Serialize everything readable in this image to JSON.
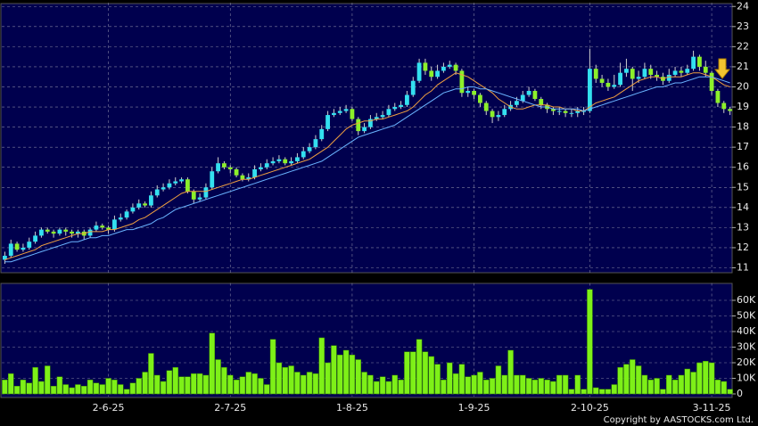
{
  "chart_data": [
    {
      "type": "candlestick",
      "categories": [
        null,
        null,
        null,
        null,
        null,
        null,
        null,
        null,
        null,
        null,
        null,
        null,
        null,
        null,
        null,
        null,
        null,
        "2-6-25",
        null,
        null,
        null,
        null,
        null,
        null,
        null,
        null,
        null,
        null,
        null,
        null,
        null,
        null,
        null,
        null,
        null,
        null,
        null,
        "2-7-25",
        null,
        null,
        null,
        null,
        null,
        null,
        null,
        null,
        null,
        null,
        null,
        null,
        null,
        null,
        null,
        null,
        null,
        null,
        null,
        "1-8-25",
        null,
        null,
        null,
        null,
        null,
        null,
        null,
        null,
        null,
        null,
        null,
        null,
        null,
        null,
        null,
        null,
        null,
        null,
        null,
        "1-9-25",
        null,
        null,
        null,
        null,
        null,
        null,
        null,
        null,
        null,
        null,
        null,
        null,
        null,
        null,
        null,
        null,
        null,
        null,
        "2-10-25",
        null,
        null,
        null,
        null,
        null,
        null,
        null,
        null,
        null,
        null,
        null,
        null,
        null,
        null,
        null,
        null,
        null,
        null,
        null,
        "3-11-25",
        null,
        null,
        null
      ],
      "open": [
        11.4,
        11.6,
        12.2,
        11.9,
        12.0,
        12.3,
        12.6,
        12.9,
        12.8,
        12.7,
        12.9,
        12.8,
        12.7,
        12.8,
        12.6,
        12.9,
        13.1,
        13.0,
        12.9,
        13.4,
        13.5,
        13.8,
        14.0,
        14.2,
        14.1,
        14.6,
        14.9,
        15.0,
        15.2,
        15.3,
        15.4,
        14.8,
        14.4,
        14.5,
        15.0,
        15.8,
        16.2,
        16.0,
        15.9,
        15.6,
        15.4,
        15.5,
        15.9,
        16.0,
        16.2,
        16.3,
        16.4,
        16.2,
        16.3,
        16.5,
        16.8,
        17.0,
        17.4,
        17.9,
        18.6,
        18.7,
        18.8,
        18.9,
        18.4,
        17.8,
        18.0,
        18.4,
        18.5,
        18.6,
        18.9,
        19.0,
        19.1,
        19.6,
        20.3,
        21.2,
        20.8,
        20.5,
        20.8,
        21.0,
        21.1,
        20.8,
        19.7,
        19.8,
        19.6,
        19.2,
        18.8,
        18.5,
        18.6,
        18.9,
        19.1,
        19.3,
        19.6,
        19.8,
        19.4,
        19.1,
        18.9,
        18.8,
        18.8,
        18.7,
        18.7,
        18.8,
        18.8,
        20.9,
        20.4,
        20.2,
        20.0,
        20.1,
        20.7,
        20.9,
        20.4,
        20.5,
        20.9,
        20.6,
        20.5,
        20.3,
        20.6,
        20.8,
        20.7,
        20.9,
        21.5,
        21.0,
        20.7,
        19.8,
        19.2,
        18.9
      ],
      "high": [
        11.8,
        12.4,
        12.3,
        12.2,
        12.5,
        12.8,
        13.0,
        13.0,
        12.9,
        13.0,
        13.0,
        12.9,
        12.9,
        12.9,
        13.0,
        13.3,
        13.2,
        13.1,
        13.6,
        13.7,
        13.9,
        14.2,
        14.4,
        14.3,
        14.8,
        15.1,
        15.2,
        15.4,
        15.5,
        15.5,
        15.5,
        14.9,
        14.7,
        15.2,
        16.0,
        16.5,
        16.3,
        16.1,
        16.0,
        15.7,
        15.7,
        16.1,
        16.2,
        16.4,
        16.5,
        16.6,
        16.5,
        16.5,
        16.7,
        17.0,
        17.2,
        17.6,
        18.1,
        18.8,
        18.9,
        19.0,
        19.1,
        19.0,
        18.5,
        18.2,
        18.6,
        18.7,
        18.8,
        19.1,
        19.2,
        19.3,
        19.8,
        20.5,
        21.4,
        21.4,
        21.0,
        21.1,
        21.2,
        21.3,
        21.2,
        20.9,
        20.0,
        19.9,
        19.7,
        19.3,
        18.9,
        18.8,
        19.1,
        19.3,
        19.5,
        19.8,
        20.0,
        19.9,
        19.5,
        19.2,
        19.0,
        19.0,
        18.9,
        18.9,
        19.0,
        19.0,
        21.9,
        21.1,
        20.6,
        20.4,
        20.6,
        21.2,
        21.4,
        21.0,
        20.8,
        21.2,
        21.1,
        20.8,
        20.7,
        20.9,
        21.0,
        21.0,
        21.1,
        21.8,
        21.6,
        21.3,
        20.8,
        19.9,
        19.3,
        19.0
      ],
      "low": [
        11.2,
        11.5,
        11.8,
        11.8,
        11.9,
        12.2,
        12.5,
        12.7,
        12.5,
        12.6,
        12.6,
        12.5,
        12.5,
        12.4,
        12.5,
        12.8,
        12.9,
        12.7,
        12.8,
        13.3,
        13.4,
        13.7,
        13.9,
        14.0,
        14.0,
        14.5,
        14.8,
        14.9,
        15.1,
        15.2,
        14.7,
        14.2,
        14.3,
        14.4,
        14.9,
        15.7,
        15.9,
        15.7,
        15.5,
        15.3,
        15.3,
        15.4,
        15.8,
        15.9,
        16.1,
        16.2,
        16.1,
        16.1,
        16.2,
        16.4,
        16.7,
        16.9,
        17.3,
        17.8,
        18.5,
        18.6,
        18.7,
        18.3,
        17.6,
        17.7,
        17.9,
        18.3,
        18.4,
        18.5,
        18.8,
        18.9,
        19.0,
        19.5,
        20.2,
        20.6,
        20.3,
        20.4,
        20.7,
        20.9,
        20.6,
        19.5,
        19.5,
        19.4,
        19.0,
        18.6,
        18.2,
        18.3,
        18.5,
        18.8,
        19.0,
        19.2,
        19.5,
        19.3,
        18.9,
        18.7,
        18.6,
        18.6,
        18.5,
        18.5,
        18.5,
        18.6,
        18.7,
        20.2,
        20.0,
        19.8,
        19.9,
        20.0,
        20.5,
        19.8,
        20.2,
        20.4,
        20.4,
        20.3,
        20.1,
        20.2,
        20.5,
        20.5,
        20.6,
        20.8,
        20.8,
        20.5,
        19.6,
        19.0,
        18.7,
        18.6
      ],
      "close": [
        11.6,
        12.2,
        11.9,
        12.0,
        12.3,
        12.6,
        12.9,
        12.8,
        12.7,
        12.9,
        12.8,
        12.7,
        12.8,
        12.6,
        12.9,
        13.1,
        13.0,
        12.9,
        13.4,
        13.5,
        13.8,
        14.0,
        14.2,
        14.1,
        14.6,
        14.9,
        15.0,
        15.2,
        15.3,
        15.4,
        14.8,
        14.4,
        14.5,
        15.0,
        15.8,
        16.2,
        16.0,
        15.9,
        15.6,
        15.4,
        15.5,
        15.9,
        16.0,
        16.2,
        16.3,
        16.4,
        16.2,
        16.3,
        16.5,
        16.8,
        17.0,
        17.4,
        17.9,
        18.6,
        18.7,
        18.8,
        18.9,
        18.4,
        17.8,
        18.0,
        18.4,
        18.5,
        18.6,
        18.9,
        19.0,
        19.1,
        19.6,
        20.3,
        21.2,
        20.8,
        20.5,
        20.8,
        21.0,
        21.1,
        20.8,
        19.7,
        19.8,
        19.6,
        19.2,
        18.8,
        18.5,
        18.6,
        18.9,
        19.1,
        19.3,
        19.6,
        19.8,
        19.4,
        19.1,
        18.9,
        18.8,
        18.8,
        18.7,
        18.7,
        18.8,
        18.8,
        20.9,
        20.4,
        20.2,
        20.0,
        20.1,
        20.7,
        20.9,
        20.4,
        20.5,
        20.9,
        20.6,
        20.5,
        20.3,
        20.6,
        20.8,
        20.7,
        20.9,
        21.5,
        21.0,
        20.7,
        19.8,
        19.2,
        18.9,
        18.8
      ],
      "up_color": "#33e0f0",
      "down_color": "#8cf02a",
      "wick_color": "#d0d0d0",
      "series": [
        {
          "color": "#f0a040",
          "values": [
            11.4,
            11.5,
            11.6,
            11.7,
            11.8,
            11.9,
            12.1,
            12.2,
            12.3,
            12.4,
            12.5,
            12.6,
            12.7,
            12.7,
            12.8,
            12.8,
            12.8,
            12.9,
            12.9,
            13.0,
            13.1,
            13.2,
            13.4,
            13.5,
            13.7,
            13.9,
            14.1,
            14.3,
            14.5,
            14.7,
            14.8,
            14.8,
            14.8,
            14.8,
            14.9,
            15.0,
            15.1,
            15.2,
            15.3,
            15.4,
            15.4,
            15.5,
            15.6,
            15.7,
            15.8,
            15.9,
            16.0,
            16.1,
            16.2,
            16.3,
            16.4,
            16.6,
            16.8,
            17.0,
            17.3,
            17.6,
            17.9,
            18.1,
            18.2,
            18.3,
            18.3,
            18.4,
            18.4,
            18.5,
            18.6,
            18.7,
            18.8,
            19.0,
            19.3,
            19.6,
            19.8,
            20.1,
            20.3,
            20.5,
            20.7,
            20.6,
            20.5,
            20.3,
            20.1,
            19.9,
            19.7,
            19.4,
            19.2,
            19.0,
            18.9,
            18.9,
            19.0,
            19.1,
            19.1,
            19.1,
            19.0,
            19.0,
            18.9,
            18.9,
            18.8,
            18.8,
            19.0,
            19.2,
            19.3,
            19.4,
            19.5,
            19.7,
            19.9,
            20.1,
            20.3,
            20.4,
            20.5,
            20.5,
            20.4,
            20.5,
            20.5,
            20.5,
            20.6,
            20.7,
            20.7,
            20.6,
            20.5,
            20.3,
            20.1,
            20.0
          ]
        },
        {
          "color": "#6ab4ff",
          "values": [
            11.3,
            11.3,
            11.4,
            11.5,
            11.6,
            11.7,
            11.8,
            11.9,
            12.0,
            12.1,
            12.2,
            12.3,
            12.3,
            12.4,
            12.5,
            12.5,
            12.6,
            12.6,
            12.7,
            12.8,
            12.9,
            12.9,
            13.0,
            13.1,
            13.2,
            13.4,
            13.5,
            13.7,
            13.9,
            14.0,
            14.1,
            14.2,
            14.3,
            14.4,
            14.5,
            14.6,
            14.7,
            14.8,
            14.9,
            15.0,
            15.1,
            15.2,
            15.3,
            15.4,
            15.5,
            15.6,
            15.7,
            15.8,
            15.9,
            16.0,
            16.1,
            16.2,
            16.3,
            16.5,
            16.7,
            16.9,
            17.1,
            17.3,
            17.5,
            17.6,
            17.7,
            17.8,
            17.9,
            18.0,
            18.1,
            18.3,
            18.5,
            18.7,
            18.9,
            19.1,
            19.3,
            19.5,
            19.7,
            19.8,
            19.9,
            19.9,
            20.0,
            20.0,
            19.9,
            19.9,
            19.8,
            19.7,
            19.6,
            19.5,
            19.4,
            19.3,
            19.2,
            19.1,
            19.0,
            19.0,
            18.9,
            18.9,
            18.9,
            18.9,
            18.9,
            18.8,
            18.9,
            19.0,
            19.1,
            19.2,
            19.3,
            19.4,
            19.5,
            19.6,
            19.7,
            19.8,
            19.9,
            20.0,
            20.0,
            20.1,
            20.2,
            20.2,
            20.3,
            20.4,
            20.5,
            20.5,
            20.5,
            20.4,
            20.3,
            20.2
          ]
        }
      ],
      "ylim": [
        10.8,
        24.1
      ],
      "yticks": [
        11,
        12,
        13,
        14,
        15,
        16,
        17,
        18,
        19,
        20,
        21,
        22,
        23,
        24
      ],
      "grid": true
    },
    {
      "type": "bar",
      "values": [
        9000,
        13000,
        5000,
        9000,
        7000,
        17000,
        8000,
        18000,
        5000,
        11000,
        6000,
        4000,
        6000,
        5000,
        9000,
        7000,
        6000,
        10000,
        9000,
        6000,
        3000,
        7000,
        10000,
        14000,
        26000,
        12000,
        8000,
        15000,
        17000,
        11000,
        11000,
        13000,
        13000,
        12000,
        39000,
        22000,
        17000,
        12000,
        9000,
        11000,
        14000,
        13000,
        10000,
        6000,
        35000,
        20000,
        17000,
        18000,
        14000,
        12000,
        14000,
        13000,
        36000,
        20000,
        31000,
        25000,
        28000,
        25000,
        22000,
        14000,
        12000,
        8000,
        11000,
        8000,
        12000,
        9000,
        27000,
        27000,
        35000,
        27000,
        24000,
        19000,
        9000,
        20000,
        13000,
        19000,
        11000,
        12000,
        14000,
        9000,
        10000,
        18000,
        12000,
        28000,
        12000,
        12000,
        10000,
        9000,
        10000,
        9000,
        8000,
        12000,
        12000,
        3000,
        12000,
        3000,
        67000,
        4000,
        3000,
        3000,
        6000,
        17000,
        19000,
        22000,
        18000,
        12000,
        9000,
        10000,
        3000,
        12000,
        9000,
        12000,
        16000,
        14000,
        20000,
        21000,
        20000,
        9000,
        8000,
        3000
      ],
      "color": "#7ef018",
      "ylim": [
        0,
        70000
      ],
      "yticks": [
        0,
        {
          "value": 10000,
          "label": "10K"
        },
        {
          "value": 20000,
          "label": "20K"
        },
        {
          "value": 30000,
          "label": "30K"
        },
        {
          "value": 40000,
          "label": "40K"
        },
        {
          "value": 50000,
          "label": "50K"
        },
        {
          "value": 60000,
          "label": "60K"
        }
      ],
      "grid": true
    }
  ],
  "copyright": "Copyright by AASTOCKS.com Ltd."
}
